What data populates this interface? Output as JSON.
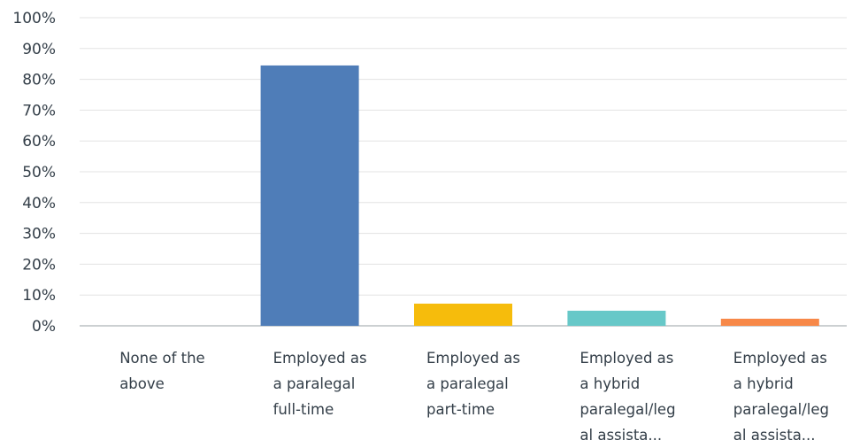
{
  "chart_data": {
    "type": "bar",
    "categories": [
      [
        "None of the",
        "above"
      ],
      [
        "Employed as",
        "a paralegal",
        "full-time"
      ],
      [
        "Employed as",
        "a paralegal",
        "part-time"
      ],
      [
        "Employed as",
        "a hybrid",
        "paralegal/leg",
        "al assista..."
      ],
      [
        "Employed as",
        "a hybrid",
        "paralegal/leg",
        "al assista..."
      ]
    ],
    "values": [
      0,
      84.5,
      7.2,
      4.9,
      2.3
    ],
    "colors": [
      "#4f7db8",
      "#4f7db8",
      "#f6bc0c",
      "#67c8c8",
      "#f78848"
    ],
    "ylim": [
      0,
      100
    ],
    "yticks": [
      "0%",
      "10%",
      "20%",
      "30%",
      "40%",
      "50%",
      "60%",
      "70%",
      "80%",
      "90%",
      "100%"
    ],
    "grid": true,
    "legend": "none",
    "title": "",
    "xlabel": "",
    "ylabel": ""
  }
}
